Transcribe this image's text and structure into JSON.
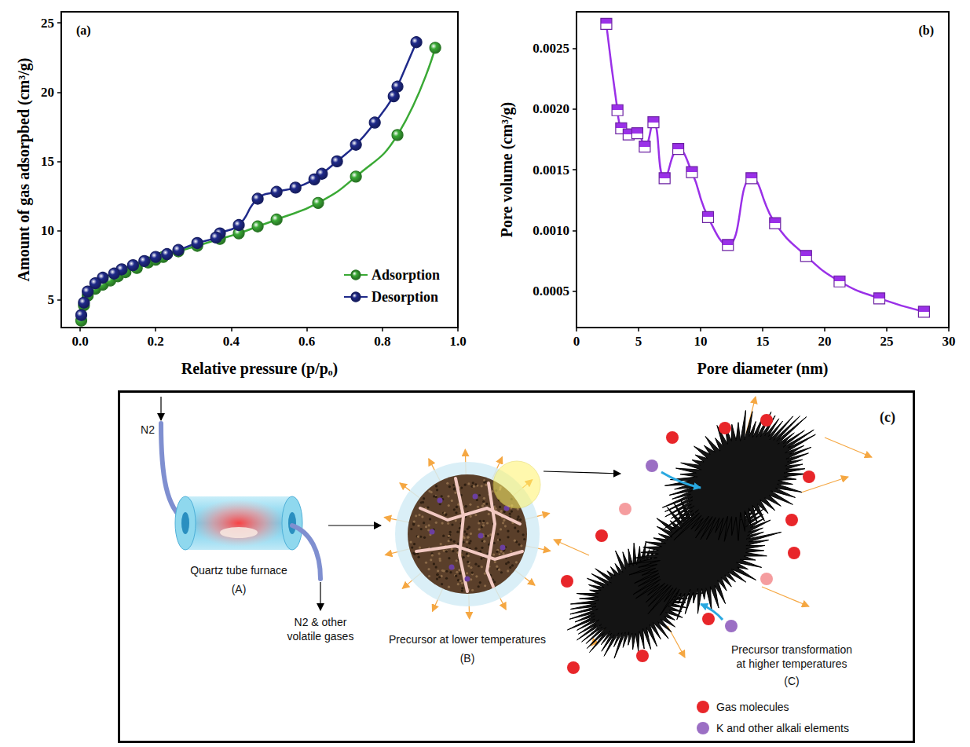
{
  "chart_data": [
    {
      "type": "line",
      "title": "(a)",
      "x_label": "Relative pressure (p/pₒ)",
      "y_label": "Amount of gas adsorpbed (cm³/g)",
      "xlim": [
        -0.05,
        1.0
      ],
      "xticks": [
        {
          "value": 0,
          "label": "0.0"
        },
        0.2,
        0.4,
        0.6,
        0.8,
        {
          "value": 1,
          "label": "1.0"
        }
      ],
      "ylim": [
        3,
        25.8
      ],
      "yticks": [
        5,
        10,
        15,
        20,
        25
      ],
      "grid": false,
      "legend": "lower right",
      "marker": "circle",
      "line_style": "smooth",
      "series": [
        {
          "name": "Adsorption",
          "color": "#3aa935",
          "x": [
            0.003,
            0.01,
            0.02,
            0.04,
            0.06,
            0.08,
            0.1,
            0.12,
            0.15,
            0.18,
            0.2,
            0.22,
            0.26,
            0.31,
            0.37,
            0.42,
            0.47,
            0.52,
            0.63,
            0.73,
            0.84,
            0.94
          ],
          "values": [
            3.5,
            4.6,
            5.3,
            5.8,
            6.1,
            6.4,
            6.7,
            7.0,
            7.3,
            7.7,
            7.9,
            8.1,
            8.5,
            8.9,
            9.4,
            9.8,
            10.3,
            10.8,
            12.0,
            13.9,
            16.9,
            23.2
          ]
        },
        {
          "name": "Desorption",
          "color": "#1f2a8a",
          "x": [
            0.89,
            0.84,
            0.83,
            0.78,
            0.73,
            0.68,
            0.64,
            0.62,
            0.57,
            0.52,
            0.47,
            0.42,
            0.37,
            0.36,
            0.31,
            0.26,
            0.23,
            0.2,
            0.17,
            0.14,
            0.11,
            0.09,
            0.06,
            0.04,
            0.02,
            0.01,
            0.003
          ],
          "values": [
            23.6,
            20.4,
            19.7,
            17.8,
            16.2,
            15.0,
            14.1,
            13.7,
            13.1,
            12.8,
            12.3,
            10.4,
            9.8,
            9.5,
            9.1,
            8.6,
            8.3,
            8.1,
            7.8,
            7.5,
            7.2,
            6.9,
            6.6,
            6.2,
            5.6,
            4.8,
            3.9
          ]
        }
      ]
    },
    {
      "type": "line",
      "title": "(b)",
      "x_label": "Pore diameter (nm)",
      "y_label": "Pore volume (cm³/g)",
      "xlim": [
        0,
        30
      ],
      "xticks": [
        0,
        5,
        10,
        15,
        20,
        25,
        30
      ],
      "ylim": [
        0.0002,
        0.0028
      ],
      "yticks": [
        0.0005,
        {
          "value": 0.001,
          "label": "0.0010"
        },
        0.0015,
        {
          "value": 0.002,
          "label": "0.0020"
        },
        0.0025
      ],
      "grid": false,
      "marker": "square",
      "line_style": "smooth",
      "color": "#9a30e8",
      "x": [
        2.4,
        3.3,
        3.6,
        4.2,
        4.9,
        5.5,
        6.2,
        7.1,
        8.2,
        9.3,
        10.6,
        12.2,
        14.1,
        16.0,
        18.5,
        21.2,
        24.4,
        28.0
      ],
      "values": [
        0.0027,
        0.00199,
        0.00184,
        0.00179,
        0.0018,
        0.00169,
        0.00189,
        0.00143,
        0.00167,
        0.00148,
        0.00111,
        0.00088,
        0.00143,
        0.00106,
        0.00079,
        0.00058,
        0.00044,
        0.00033
      ]
    }
  ],
  "diagram": {
    "title": "(c)",
    "furnace": {
      "inlet": "N2",
      "name": "Quartz tube furnace",
      "tag": "(A)",
      "outlet": "N2 & other volatile gases"
    },
    "low_temperature": {
      "name": "Precursor at lower temperatures",
      "tag": "(B)"
    },
    "high_temperature": {
      "name": "Precursor transformation at higher temperatures",
      "tag": "(C)"
    },
    "legend": [
      {
        "label": "Gas molecules",
        "color": "#e8262a"
      },
      {
        "label": "K and other alkali elements",
        "color": "#9b6fc4"
      }
    ]
  }
}
